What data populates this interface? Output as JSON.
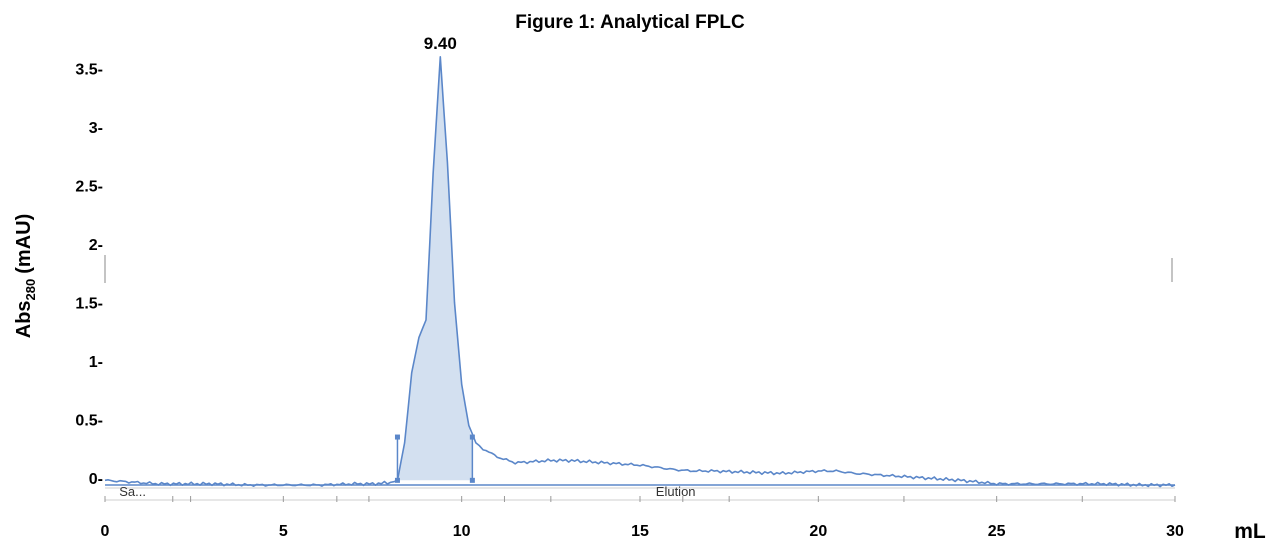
{
  "chart_data": {
    "type": "line",
    "title": "Figure 1:  Analytical FPLC",
    "ylabel": "Abs",
    "ylabel_sub": "280",
    "ylabel_unit": "(mAU)",
    "xlabel": "mL",
    "xlim": [
      0,
      30
    ],
    "ylim": [
      -0.1,
      3.75
    ],
    "x_ticks": [
      "0",
      "5",
      "10",
      "15",
      "20",
      "25",
      "30"
    ],
    "x_tick_values": [
      0,
      5,
      10,
      15,
      20,
      25,
      30
    ],
    "y_ticks": [
      "0-",
      "0.5-",
      "1-",
      "1.5-",
      "2-",
      "2.5-",
      "3-",
      "3.5-"
    ],
    "y_tick_values": [
      0,
      0.5,
      1,
      1.5,
      2,
      2.5,
      3,
      3.5
    ],
    "grid": false,
    "line_color": "#5b87c9",
    "fill_color": "#d3e0f0",
    "series": [
      {
        "x": [
          0,
          0.5,
          1,
          1.5,
          2,
          3,
          4,
          5,
          6,
          7,
          7.5,
          8,
          8.2,
          8.4,
          8.6,
          8.8,
          9.0,
          9.2,
          9.4,
          9.6,
          9.8,
          10.0,
          10.2,
          10.4,
          10.6,
          11.0,
          11.5,
          12,
          12.5,
          13,
          13.5,
          14,
          14.5,
          15,
          15.5,
          16,
          16.5,
          17,
          18,
          19,
          20,
          20.5,
          21,
          22,
          23,
          24,
          25,
          26,
          27,
          28,
          29,
          30
        ],
        "y": [
          -0.02,
          -0.03,
          -0.04,
          -0.05,
          -0.05,
          -0.05,
          -0.06,
          -0.06,
          -0.06,
          -0.05,
          -0.05,
          -0.04,
          -0.02,
          0.3,
          0.9,
          1.2,
          1.35,
          2.6,
          3.6,
          2.7,
          1.5,
          0.8,
          0.45,
          0.3,
          0.25,
          0.18,
          0.13,
          0.14,
          0.15,
          0.15,
          0.14,
          0.13,
          0.12,
          0.11,
          0.09,
          0.07,
          0.06,
          0.06,
          0.05,
          0.04,
          0.06,
          0.06,
          0.04,
          0.02,
          0.0,
          -0.02,
          -0.05,
          -0.05,
          -0.05,
          -0.05,
          -0.06,
          -0.06
        ]
      }
    ],
    "peak_label": "9.40",
    "peak_x": 9.4,
    "peak_y": 3.6,
    "fill_range": [
      8.2,
      10.3
    ],
    "integration_markers": [
      {
        "x": 8.2,
        "y_top": 0.35
      },
      {
        "x": 10.3,
        "y_top": 0.35
      }
    ],
    "fractions": [
      {
        "label": "Sa...",
        "x": 0.4
      },
      {
        "label": "Elution",
        "x": 16.0
      }
    ],
    "fraction_tick_values": [
      0,
      1.9,
      2.4,
      5,
      6.5,
      7.4,
      10,
      11.2,
      12.5,
      15,
      16.2,
      17.5,
      20,
      22.4,
      25,
      27.4,
      30
    ]
  }
}
